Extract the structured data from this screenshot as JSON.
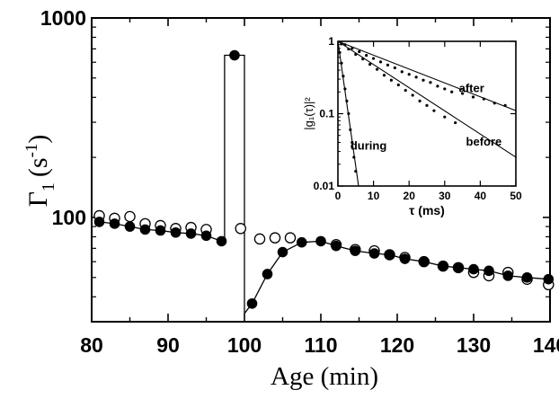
{
  "chart_data": [
    {
      "type": "scatter",
      "title": "",
      "xlabel": "Age (min)",
      "ylabel_symbol": "Γ",
      "ylabel_subscript": "1",
      "ylabel_unit": "(s",
      "ylabel_unit_exp": "-1",
      "ylabel_unit_close": ")",
      "xlim": [
        80,
        140
      ],
      "ylim": [
        30,
        1000
      ],
      "yscale": "log",
      "xticks": [
        80,
        90,
        100,
        110,
        120,
        130,
        140
      ],
      "xtick_labels": [
        "80",
        "90",
        "100",
        "110",
        "120",
        "130",
        "140"
      ],
      "yticks": [
        100,
        1000
      ],
      "ytick_labels": [
        "100",
        "1000"
      ],
      "grid": false,
      "series": [
        {
          "marker": "filled-circle",
          "connected": true,
          "points": [
            [
              81,
              95
            ],
            [
              83,
              93
            ],
            [
              85,
              90
            ],
            [
              87,
              87
            ],
            [
              89,
              86
            ],
            [
              91,
              84
            ],
            [
              93,
              83
            ],
            [
              95,
              81
            ],
            [
              97,
              76
            ],
            [
              98.7,
              650
            ],
            [
              101,
              37
            ],
            [
              103,
              52
            ],
            [
              105,
              67
            ],
            [
              107.5,
              75
            ],
            [
              110,
              76
            ],
            [
              112,
              72
            ],
            [
              114.5,
              68
            ],
            [
              117,
              66
            ],
            [
              119,
              65
            ],
            [
              121,
              62
            ],
            [
              123.5,
              60
            ],
            [
              126,
              57
            ],
            [
              128,
              56
            ],
            [
              130,
              55
            ],
            [
              132,
              54
            ],
            [
              134.5,
              51
            ],
            [
              137,
              50
            ],
            [
              139.8,
              49
            ]
          ],
          "line_points": [
            [
              81,
              95
            ],
            [
              83,
              93
            ],
            [
              85,
              90
            ],
            [
              87,
              87
            ],
            [
              89,
              86
            ],
            [
              91,
              84
            ],
            [
              93,
              83
            ],
            [
              95,
              81
            ],
            [
              97,
              76
            ],
            [
              97.4,
              76
            ],
            [
              97.4,
              650
            ],
            [
              100,
              650
            ],
            [
              100,
              33
            ],
            [
              101,
              37
            ],
            [
              103,
              52
            ],
            [
              105,
              67
            ],
            [
              107.5,
              75
            ],
            [
              110,
              76
            ],
            [
              112,
              72
            ],
            [
              114.5,
              68
            ],
            [
              117,
              66
            ],
            [
              119,
              65
            ],
            [
              121,
              62
            ],
            [
              123.5,
              60
            ],
            [
              126,
              57
            ],
            [
              128,
              56
            ],
            [
              130,
              55
            ],
            [
              132,
              54
            ],
            [
              134.5,
              51
            ],
            [
              137,
              50
            ],
            [
              139.8,
              49
            ]
          ]
        },
        {
          "marker": "open-circle",
          "connected": false,
          "points": [
            [
              81,
              102
            ],
            [
              83,
              99
            ],
            [
              85,
              101
            ],
            [
              87,
              93
            ],
            [
              89,
              91
            ],
            [
              91,
              88
            ],
            [
              93,
              89
            ],
            [
              95,
              87
            ],
            [
              99.5,
              88
            ],
            [
              102,
              78
            ],
            [
              104,
              79
            ],
            [
              106,
              79
            ],
            [
              112,
              73
            ],
            [
              114.5,
              69
            ],
            [
              117,
              68
            ],
            [
              119,
              65
            ],
            [
              121,
              63
            ],
            [
              123.5,
              60
            ],
            [
              126,
              57
            ],
            [
              128,
              56
            ],
            [
              130,
              53
            ],
            [
              132,
              51
            ],
            [
              134.5,
              53
            ],
            [
              137,
              49
            ],
            [
              139.8,
              46
            ]
          ]
        }
      ]
    },
    {
      "type": "scatter",
      "title": "",
      "xlabel": "τ (ms)",
      "ylabel": "|g₁(τ)|²",
      "xlim": [
        0,
        50
      ],
      "ylim": [
        0.01,
        1
      ],
      "yscale": "log",
      "xticks": [
        0,
        10,
        20,
        30,
        40,
        50
      ],
      "xtick_labels": [
        "0",
        "10",
        "20",
        "30",
        "40",
        "50"
      ],
      "yticks": [
        0.01,
        0.1,
        1
      ],
      "ytick_labels": [
        "0.01",
        "0.1",
        "1"
      ],
      "grid": false,
      "annotations": [
        {
          "text": "after",
          "x": 34,
          "y": 0.2
        },
        {
          "text": "before",
          "x": 36,
          "y": 0.036
        },
        {
          "text": "during",
          "x": 3.5,
          "y": 0.032
        }
      ],
      "series": [
        {
          "name": "after",
          "line_points": [
            [
              0,
              1
            ],
            [
              50,
              0.11
            ]
          ],
          "dots": [
            [
              2,
              0.9
            ],
            [
              4,
              0.8
            ],
            [
              6,
              0.72
            ],
            [
              8,
              0.64
            ],
            [
              10,
              0.58
            ],
            [
              12,
              0.52
            ],
            [
              14,
              0.47
            ],
            [
              16,
              0.43
            ],
            [
              18,
              0.38
            ],
            [
              20,
              0.35
            ],
            [
              22,
              0.32
            ],
            [
              24,
              0.29
            ],
            [
              26,
              0.27
            ],
            [
              28,
              0.24
            ],
            [
              30,
              0.22
            ],
            [
              32,
              0.2
            ],
            [
              35,
              0.19
            ],
            [
              38,
              0.17
            ],
            [
              41,
              0.16
            ],
            [
              44,
              0.14
            ],
            [
              47,
              0.13
            ]
          ]
        },
        {
          "name": "before",
          "line_points": [
            [
              0,
              1
            ],
            [
              50,
              0.025
            ]
          ],
          "dots": [
            [
              1,
              0.92
            ],
            [
              3,
              0.78
            ],
            [
              5,
              0.66
            ],
            [
              7,
              0.57
            ],
            [
              9,
              0.48
            ],
            [
              11,
              0.41
            ],
            [
              13,
              0.34
            ],
            [
              15,
              0.29
            ],
            [
              17,
              0.25
            ],
            [
              19,
              0.21
            ],
            [
              21,
              0.18
            ],
            [
              23,
              0.15
            ],
            [
              25,
              0.13
            ],
            [
              27,
              0.11
            ],
            [
              30,
              0.09
            ],
            [
              33,
              0.075
            ]
          ]
        },
        {
          "name": "during",
          "line_points": [
            [
              0,
              1
            ],
            [
              5.8,
              0.01
            ]
          ],
          "dots": [
            [
              0.5,
              0.7
            ],
            [
              1,
              0.5
            ],
            [
              1.5,
              0.33
            ],
            [
              2,
              0.22
            ],
            [
              2.5,
              0.15
            ],
            [
              3,
              0.1
            ],
            [
              3.5,
              0.06
            ],
            [
              4,
              0.04
            ],
            [
              4.5,
              0.025
            ],
            [
              5,
              0.016
            ]
          ]
        }
      ]
    }
  ]
}
